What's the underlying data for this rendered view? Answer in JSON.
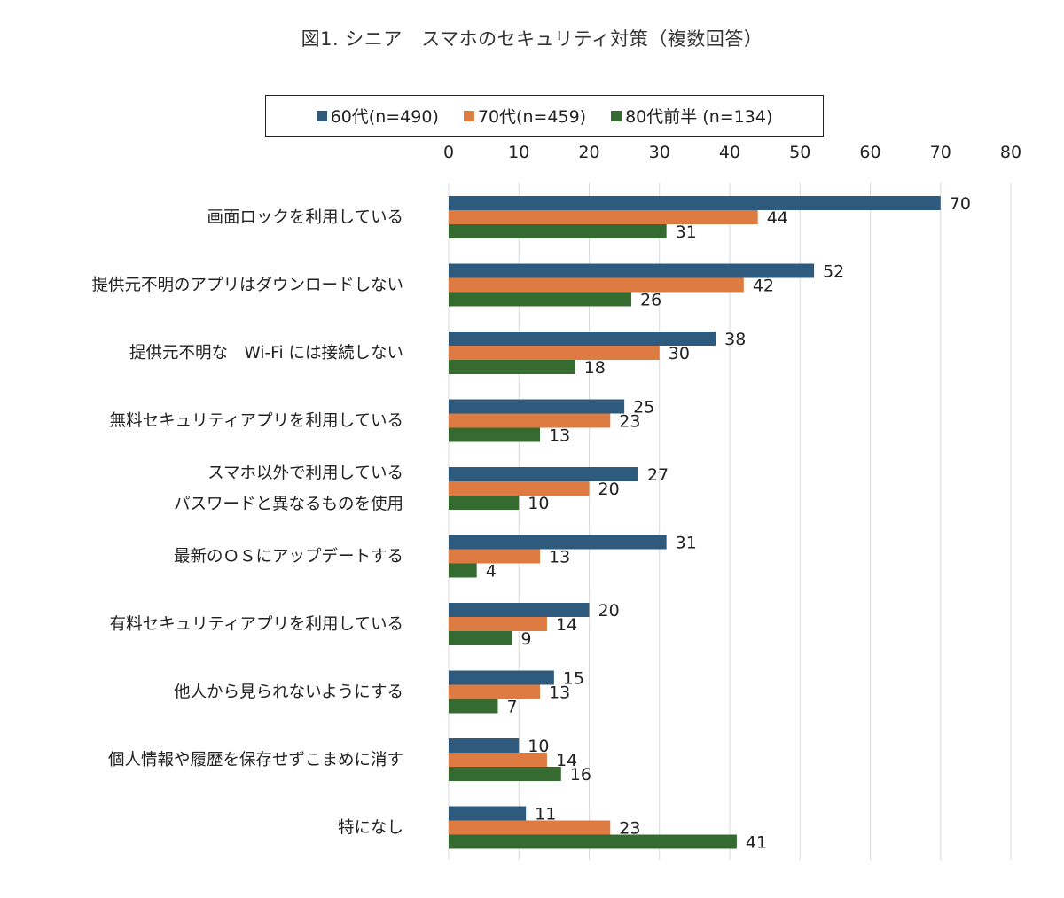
{
  "chart_data": {
    "type": "bar",
    "orientation": "horizontal",
    "title": "図1. シニア　スマホのセキュリティ対策（複数回答）",
    "xlabel": "",
    "ylabel": "",
    "xlim": [
      0,
      80
    ],
    "x_ticks": [
      0,
      10,
      20,
      30,
      40,
      50,
      60,
      70,
      80
    ],
    "x_axis_position": "top",
    "grid": true,
    "legend_position": "top",
    "categories": [
      [
        "画面ロックを利用している"
      ],
      [
        "提供元不明のアプリはダウンロードしない"
      ],
      [
        "提供元不明な　Wi-Fi には接続しない"
      ],
      [
        "無料セキュリティアプリを利用している"
      ],
      [
        "スマホ以外で利用している",
        "パスワードと異なるものを使用"
      ],
      [
        "最新のＯＳにアップデートする"
      ],
      [
        "有料セキュリティアプリを利用している"
      ],
      [
        "他人から見られないようにする"
      ],
      [
        "個人情報や履歴を保存せずこまめに消す"
      ],
      [
        "特になし"
      ]
    ],
    "series": [
      {
        "name": "60代(n=490)",
        "color": "#2e5b7d",
        "values": [
          70,
          52,
          38,
          25,
          27,
          31,
          20,
          15,
          10,
          11
        ]
      },
      {
        "name": "70代(n=459)",
        "color": "#de7b42",
        "values": [
          44,
          42,
          30,
          23,
          20,
          13,
          14,
          13,
          14,
          23
        ]
      },
      {
        "name": "80代前半 (n=134)",
        "color": "#356b30",
        "values": [
          31,
          26,
          18,
          13,
          10,
          4,
          9,
          7,
          16,
          41
        ]
      }
    ]
  }
}
